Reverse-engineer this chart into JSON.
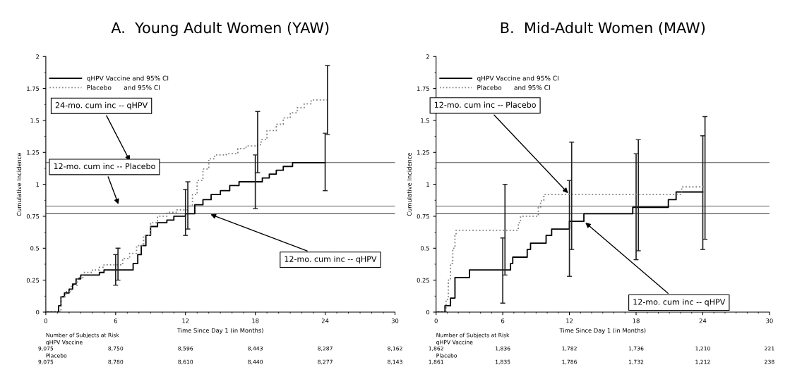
{
  "chart_data": [
    {
      "type": "step",
      "title": "A.  Young Adult Women (YAW)",
      "xlabel": "Time Since Day 1 (in Months)",
      "ylabel": "Cumulative Incidence",
      "xlim": [
        0,
        30
      ],
      "xticks": [
        0,
        6,
        12,
        18,
        24,
        30
      ],
      "ylim": [
        0,
        2
      ],
      "yticks": [
        0,
        0.25,
        0.5,
        0.75,
        1,
        1.25,
        1.5,
        1.75,
        2
      ],
      "grid": false,
      "legend": "top left",
      "marker": "none",
      "series": [
        {
          "name": "qHPV Vaccine and 95% CI",
          "color": "#000000",
          "line_style": "solid",
          "x": [
            0,
            1.0,
            1.1,
            1.3,
            1.6,
            2.0,
            2.3,
            2.6,
            3.0,
            4.2,
            4.6,
            5.0,
            6,
            7.5,
            7.9,
            8.2,
            8.6,
            9.0,
            9.6,
            10.4,
            11.0,
            12,
            12.8,
            13.5,
            14.2,
            15.0,
            15.8,
            16.6,
            18,
            18.6,
            19.2,
            19.8,
            20.4,
            21.2,
            24
          ],
          "values": [
            0,
            0,
            0.05,
            0.12,
            0.15,
            0.18,
            0.22,
            0.26,
            0.29,
            0.29,
            0.31,
            0.33,
            0.33,
            0.38,
            0.45,
            0.52,
            0.6,
            0.67,
            0.7,
            0.72,
            0.75,
            0.77,
            0.84,
            0.88,
            0.92,
            0.95,
            0.99,
            1.02,
            1.02,
            1.05,
            1.08,
            1.11,
            1.14,
            1.17,
            1.17
          ],
          "errors": [
            null,
            null,
            null,
            null,
            null,
            null,
            null,
            null,
            null,
            null,
            null,
            null,
            [
              0.21,
              0.45
            ],
            null,
            null,
            null,
            null,
            null,
            null,
            null,
            null,
            [
              0.6,
              0.96
            ],
            null,
            null,
            null,
            null,
            null,
            null,
            [
              0.81,
              1.23
            ],
            null,
            null,
            null,
            null,
            null,
            [
              0.95,
              1.4
            ]
          ]
        },
        {
          "name": "Placebo      and 95% CI",
          "color": "#808080",
          "line_style": "dotted",
          "x": [
            0,
            1.0,
            1.3,
            1.7,
            2.2,
            2.7,
            3.2,
            4.0,
            4.6,
            5.0,
            6.2,
            6.6,
            7.2,
            7.8,
            8.4,
            9.0,
            9.6,
            10.4,
            11.2,
            12.2,
            12.6,
            13.0,
            13.5,
            14.0,
            14.5,
            15.5,
            16.5,
            17.2,
            18.2,
            18.5,
            19.0,
            19.8,
            20.4,
            21.0,
            21.6,
            22.2,
            22.8,
            24.2
          ],
          "values": [
            0,
            0,
            0.12,
            0.16,
            0.21,
            0.27,
            0.31,
            0.33,
            0.35,
            0.37,
            0.37,
            0.42,
            0.46,
            0.52,
            0.6,
            0.7,
            0.75,
            0.78,
            0.8,
            0.83,
            0.92,
            1.03,
            1.12,
            1.2,
            1.23,
            1.24,
            1.28,
            1.3,
            1.31,
            1.35,
            1.42,
            1.47,
            1.52,
            1.56,
            1.6,
            1.63,
            1.66,
            1.66
          ],
          "errors": [
            null,
            null,
            null,
            null,
            null,
            null,
            null,
            null,
            null,
            null,
            [
              0.25,
              0.5
            ],
            null,
            null,
            null,
            null,
            null,
            null,
            null,
            null,
            [
              0.65,
              1.02
            ],
            null,
            null,
            null,
            null,
            null,
            null,
            null,
            null,
            [
              1.09,
              1.57
            ],
            null,
            null,
            null,
            null,
            null,
            null,
            null,
            null,
            [
              1.39,
              1.93
            ]
          ]
        }
      ],
      "ref_lines": [
        {
          "axis": "y",
          "value": 1.17,
          "label": "24-mo. cum inc -- qHPV",
          "color": "#555555"
        },
        {
          "axis": "y",
          "value": 0.83,
          "label": "12-mo. cum inc -- Placebo",
          "color": "#555555"
        },
        {
          "axis": "y",
          "value": 0.77,
          "label": "12-mo. cum inc -- qHPV",
          "color": "#555555"
        }
      ],
      "annotations": [
        "Number of Subjects at Risk",
        "qHPV Vaccine",
        "9,075",
        "8,750",
        "8,596",
        "8,443",
        "8,287",
        "8,162",
        "Placebo",
        "9,075",
        "8,780",
        "8,610",
        "8,440",
        "8,277",
        "8,143"
      ]
    },
    {
      "type": "step",
      "title": "B.  Mid-Adult Women (MAW)",
      "xlabel": "Time Since Day 1 (in Months)",
      "ylabel": "Cumulative Incidence",
      "xlim": [
        0,
        30
      ],
      "xticks": [
        0,
        6,
        12,
        18,
        24,
        30
      ],
      "ylim": [
        0,
        2
      ],
      "yticks": [
        0,
        0.25,
        0.5,
        0.75,
        1,
        1.25,
        1.5,
        1.75,
        2
      ],
      "grid": false,
      "legend": "top left",
      "marker": "none",
      "series": [
        {
          "name": "qHPV Vaccine and 95% CI",
          "color": "#000000",
          "line_style": "solid",
          "x": [
            0,
            0.8,
            1.3,
            1.7,
            3.0,
            6,
            6.7,
            6.9,
            8.2,
            8.5,
            9.9,
            10.4,
            12,
            13.3,
            17.7,
            18,
            20.9,
            21.6,
            24
          ],
          "values": [
            0,
            0.05,
            0.11,
            0.27,
            0.33,
            0.33,
            0.38,
            0.43,
            0.49,
            0.54,
            0.6,
            0.65,
            0.71,
            0.77,
            0.82,
            0.82,
            0.88,
            0.94,
            0.94
          ],
          "errors": [
            null,
            null,
            null,
            null,
            null,
            [
              0.07,
              0.58
            ],
            null,
            null,
            null,
            null,
            null,
            null,
            [
              0.28,
              1.03
            ],
            null,
            null,
            [
              0.41,
              1.24
            ],
            null,
            null,
            [
              0.49,
              1.38
            ]
          ]
        },
        {
          "name": "Placebo      and 95% CI",
          "color": "#808080",
          "line_style": "dotted",
          "x": [
            0,
            0.8,
            0.9,
            1.1,
            1.3,
            1.5,
            1.7,
            1.8,
            6.2,
            7.3,
            7.4,
            7.6,
            9.0,
            9.2,
            9.4,
            9.7,
            12.2,
            18.2,
            22.1,
            24.2
          ],
          "values": [
            0,
            0,
            0.1,
            0.25,
            0.38,
            0.5,
            0.6,
            0.64,
            0.64,
            0.64,
            0.7,
            0.75,
            0.75,
            0.82,
            0.87,
            0.92,
            0.92,
            0.92,
            0.98,
            0.98
          ],
          "errors": [
            null,
            null,
            null,
            null,
            null,
            null,
            null,
            null,
            [
              0.29,
              1.0
            ],
            null,
            null,
            null,
            null,
            null,
            null,
            null,
            [
              0.49,
              1.33
            ],
            [
              0.48,
              1.35
            ],
            null,
            [
              0.57,
              1.53
            ]
          ]
        }
      ],
      "ref_lines": [
        {
          "axis": "y",
          "value": 1.17,
          "color": "#555555"
        },
        {
          "axis": "y",
          "value": 0.83,
          "color": "#555555"
        },
        {
          "axis": "y",
          "value": 0.77,
          "color": "#555555"
        }
      ],
      "annotations": [
        {
          "text": "12-mo. cum inc -- Placebo",
          "x": 12,
          "y": 0.92
        },
        {
          "text": "12-mo. cum inc -- qHPV",
          "x": 13.3,
          "y": 0.71
        },
        "Number of Subjects at Risk",
        "qHPV Vaccine",
        "1,862",
        "1,836",
        "1,782",
        "1,736",
        "1,210",
        "221",
        "Placebo",
        "1,861",
        "1,835",
        "1,786",
        "1,732",
        "1,212",
        "238"
      ]
    }
  ]
}
